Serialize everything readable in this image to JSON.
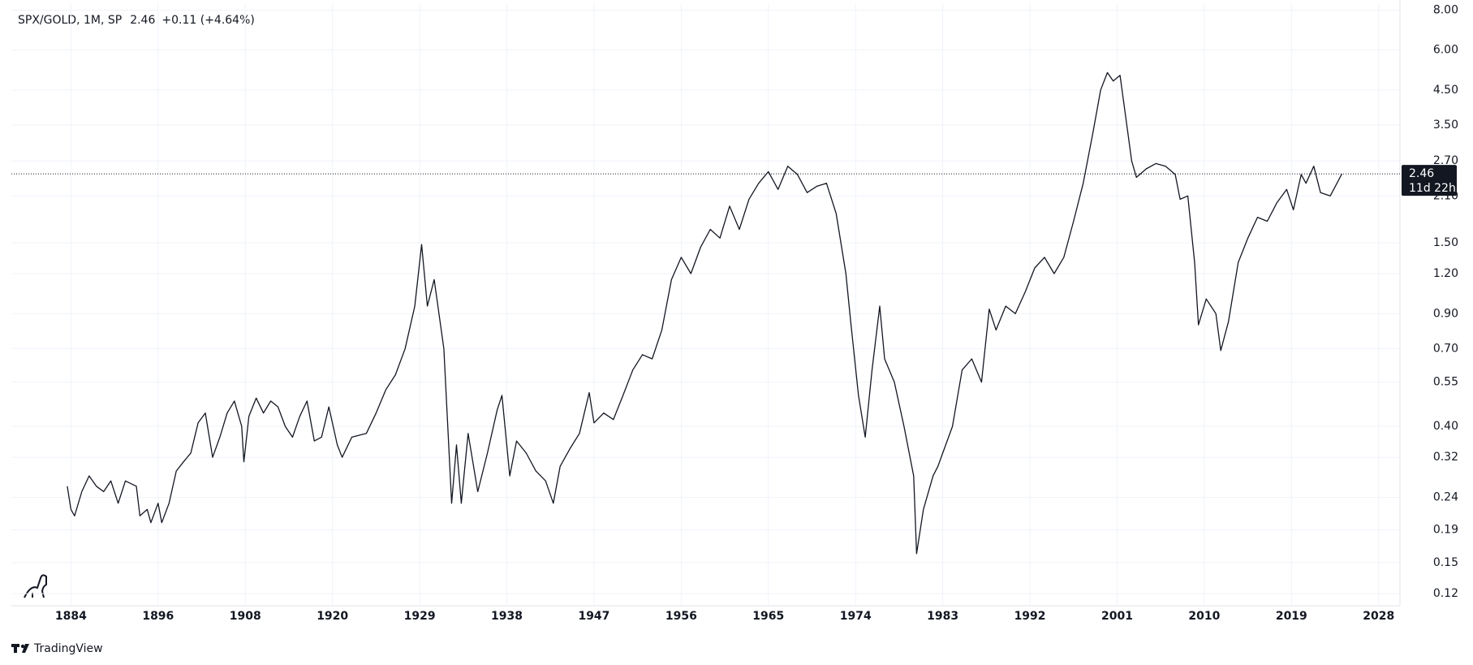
{
  "chart_data": {
    "type": "line",
    "title": "SPX/GOLD, 1M, SP",
    "last_value": 2.46,
    "change": "+0.11 (+4.64%)",
    "countdown": "11d 22h",
    "brand": "TradingView",
    "log_scale": true,
    "grid": true,
    "color": "#131722",
    "xlim": [
      1875.8,
      2030.2
    ],
    "xticks": [
      1884,
      1896,
      1908,
      1920,
      1929,
      1938,
      1947,
      1956,
      1965,
      1974,
      1983,
      1992,
      2001,
      2010,
      2019,
      2028
    ],
    "ylim": [
      0.11,
      8.4
    ],
    "yticks": [
      {
        "value": 0.12,
        "label": "0.12"
      },
      {
        "value": 0.15,
        "label": "0.15"
      },
      {
        "value": 0.19,
        "label": "0.19"
      },
      {
        "value": 0.24,
        "label": "0.24"
      },
      {
        "value": 0.32,
        "label": "0.32"
      },
      {
        "value": 0.4,
        "label": "0.40"
      },
      {
        "value": 0.55,
        "label": "0.55"
      },
      {
        "value": 0.7,
        "label": "0.70"
      },
      {
        "value": 0.9,
        "label": "0.90"
      },
      {
        "value": 1.2,
        "label": "1.20"
      },
      {
        "value": 1.5,
        "label": "1.50"
      },
      {
        "value": 2.1,
        "label": "2.10"
      },
      {
        "value": 2.7,
        "label": "2.70"
      },
      {
        "value": 3.5,
        "label": "3.50"
      },
      {
        "value": 4.5,
        "label": "4.50"
      },
      {
        "value": 6,
        "label": "6.00"
      },
      {
        "value": 8,
        "label": "8.00"
      }
    ],
    "x": [
      1883.5,
      1884,
      1884.5,
      1885.5,
      1886.5,
      1887.5,
      1888.5,
      1889.5,
      1890.5,
      1891.5,
      1893,
      1893.5,
      1894.5,
      1895,
      1896,
      1896.5,
      1897.5,
      1898.5,
      1899.5,
      1900.5,
      1901.5,
      1902.5,
      1903.5,
      1904.5,
      1905.5,
      1906.5,
      1907.5,
      1907.8,
      1908.5,
      1909.5,
      1910.5,
      1911.5,
      1912.5,
      1913.5,
      1914.5,
      1915.5,
      1916.5,
      1917.5,
      1918.5,
      1919.5,
      1920.5,
      1921,
      1922,
      1923.5,
      1924.5,
      1925.5,
      1926.5,
      1927.5,
      1928.5,
      1929.2,
      1929.8,
      1930.5,
      1931.5,
      1932.3,
      1932.8,
      1933.3,
      1934,
      1935,
      1936,
      1937,
      1937.5,
      1938.3,
      1939,
      1940,
      1941,
      1942,
      1942.8,
      1943.5,
      1944.5,
      1945.5,
      1946.5,
      1947,
      1948,
      1949,
      1950,
      1951,
      1952,
      1953,
      1954,
      1955,
      1956,
      1957,
      1958,
      1959,
      1960,
      1961,
      1962,
      1963,
      1964,
      1965,
      1966,
      1967,
      1968,
      1969,
      1970,
      1971,
      1972,
      1973,
      1973.5,
      1974.3,
      1975,
      1975.7,
      1976.5,
      1977,
      1978,
      1979,
      1980,
      1980.3,
      1981,
      1982,
      1982.5,
      1983,
      1984,
      1985,
      1986,
      1987,
      1987.8,
      1988.5,
      1989.5,
      1990.5,
      1991.5,
      1992.5,
      1993.5,
      1994.5,
      1995.5,
      1996.5,
      1997.5,
      1998.5,
      1999.3,
      2000,
      2000.6,
      2001.3,
      2002,
      2002.5,
      2003,
      2004,
      2005,
      2006,
      2007,
      2007.5,
      2008.3,
      2009,
      2009.4,
      2010.2,
      2011.2,
      2011.7,
      2012.5,
      2013.5,
      2014.5,
      2015.5,
      2016.5,
      2017.5,
      2018.5,
      2019.2,
      2020,
      2020.5,
      2021.3,
      2022,
      2023,
      2024.2
    ],
    "values": [
      0.26,
      0.22,
      0.21,
      0.25,
      0.28,
      0.26,
      0.25,
      0.27,
      0.23,
      0.27,
      0.26,
      0.21,
      0.22,
      0.2,
      0.23,
      0.2,
      0.23,
      0.29,
      0.31,
      0.33,
      0.41,
      0.44,
      0.32,
      0.37,
      0.44,
      0.48,
      0.4,
      0.31,
      0.43,
      0.49,
      0.44,
      0.48,
      0.46,
      0.4,
      0.37,
      0.43,
      0.48,
      0.36,
      0.37,
      0.46,
      0.35,
      0.32,
      0.37,
      0.38,
      0.44,
      0.52,
      0.58,
      0.7,
      0.95,
      1.48,
      0.95,
      1.15,
      0.7,
      0.23,
      0.35,
      0.23,
      0.38,
      0.25,
      0.33,
      0.45,
      0.5,
      0.28,
      0.36,
      0.33,
      0.29,
      0.27,
      0.23,
      0.3,
      0.34,
      0.38,
      0.51,
      0.41,
      0.44,
      0.42,
      0.5,
      0.6,
      0.67,
      0.65,
      0.8,
      1.15,
      1.35,
      1.2,
      1.45,
      1.65,
      1.55,
      1.95,
      1.65,
      2.05,
      2.3,
      2.5,
      2.2,
      2.6,
      2.45,
      2.15,
      2.25,
      2.3,
      1.85,
      1.2,
      0.85,
      0.5,
      0.37,
      0.6,
      0.95,
      0.65,
      0.55,
      0.4,
      0.28,
      0.16,
      0.22,
      0.28,
      0.3,
      0.33,
      0.4,
      0.6,
      0.65,
      0.55,
      0.93,
      0.8,
      0.95,
      0.9,
      1.05,
      1.25,
      1.35,
      1.2,
      1.35,
      1.75,
      2.3,
      3.3,
      4.5,
      5.1,
      4.8,
      5.0,
      3.5,
      2.7,
      2.4,
      2.55,
      2.65,
      2.6,
      2.45,
      2.05,
      2.1,
      1.3,
      0.83,
      1.0,
      0.9,
      0.69,
      0.85,
      1.3,
      1.55,
      1.8,
      1.75,
      2.0,
      2.2,
      1.9,
      2.45,
      2.3,
      2.6,
      2.15,
      2.1,
      2.46
    ]
  }
}
